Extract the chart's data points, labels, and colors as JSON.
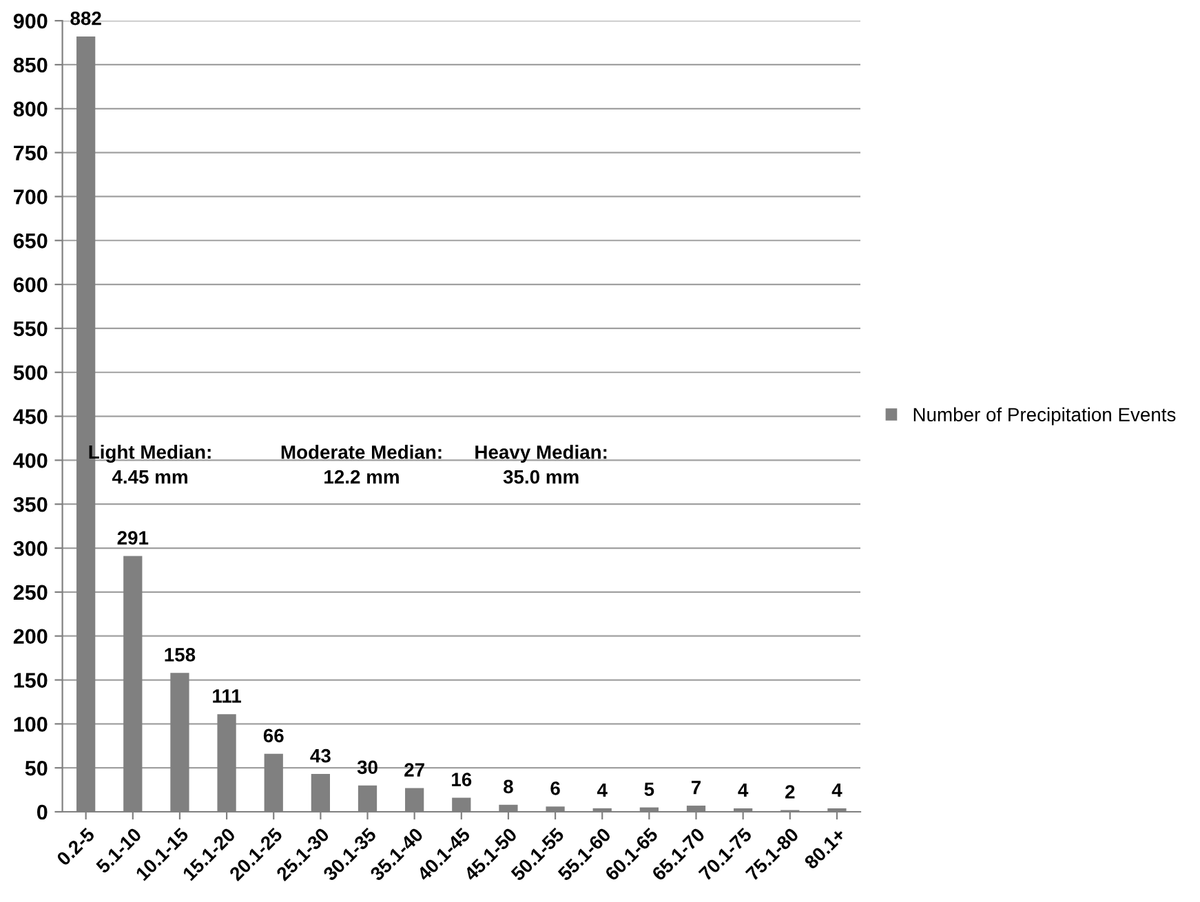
{
  "chart_data": {
    "type": "bar",
    "categories": [
      "0.2-5",
      "5.1-10",
      "10.1-15",
      "15.1-20",
      "20.1-25",
      "25.1-30",
      "30.1-35",
      "35.1-40",
      "40.1-45",
      "45.1-50",
      "50.1-55",
      "55.1-60",
      "60.1-65",
      "65.1-70",
      "70.1-75",
      "75.1-80",
      "80.1+"
    ],
    "series": [
      {
        "name": "Number of Precipitation Events",
        "color": "#808080",
        "values": [
          882,
          291,
          158,
          111,
          66,
          43,
          30,
          27,
          16,
          8,
          6,
          4,
          5,
          7,
          4,
          2,
          4
        ]
      }
    ],
    "ylim": [
      0,
      900
    ],
    "yticks": [
      0,
      50,
      100,
      150,
      200,
      250,
      300,
      350,
      400,
      450,
      500,
      550,
      600,
      650,
      700,
      750,
      800,
      850,
      900
    ],
    "grid": "y",
    "legend": "right",
    "data_labels": true,
    "annotations": [
      "Light Median:\n4.45 mm",
      "Moderate Median:\n12.2 mm",
      "Heavy Median:\n35.0 mm"
    ]
  }
}
